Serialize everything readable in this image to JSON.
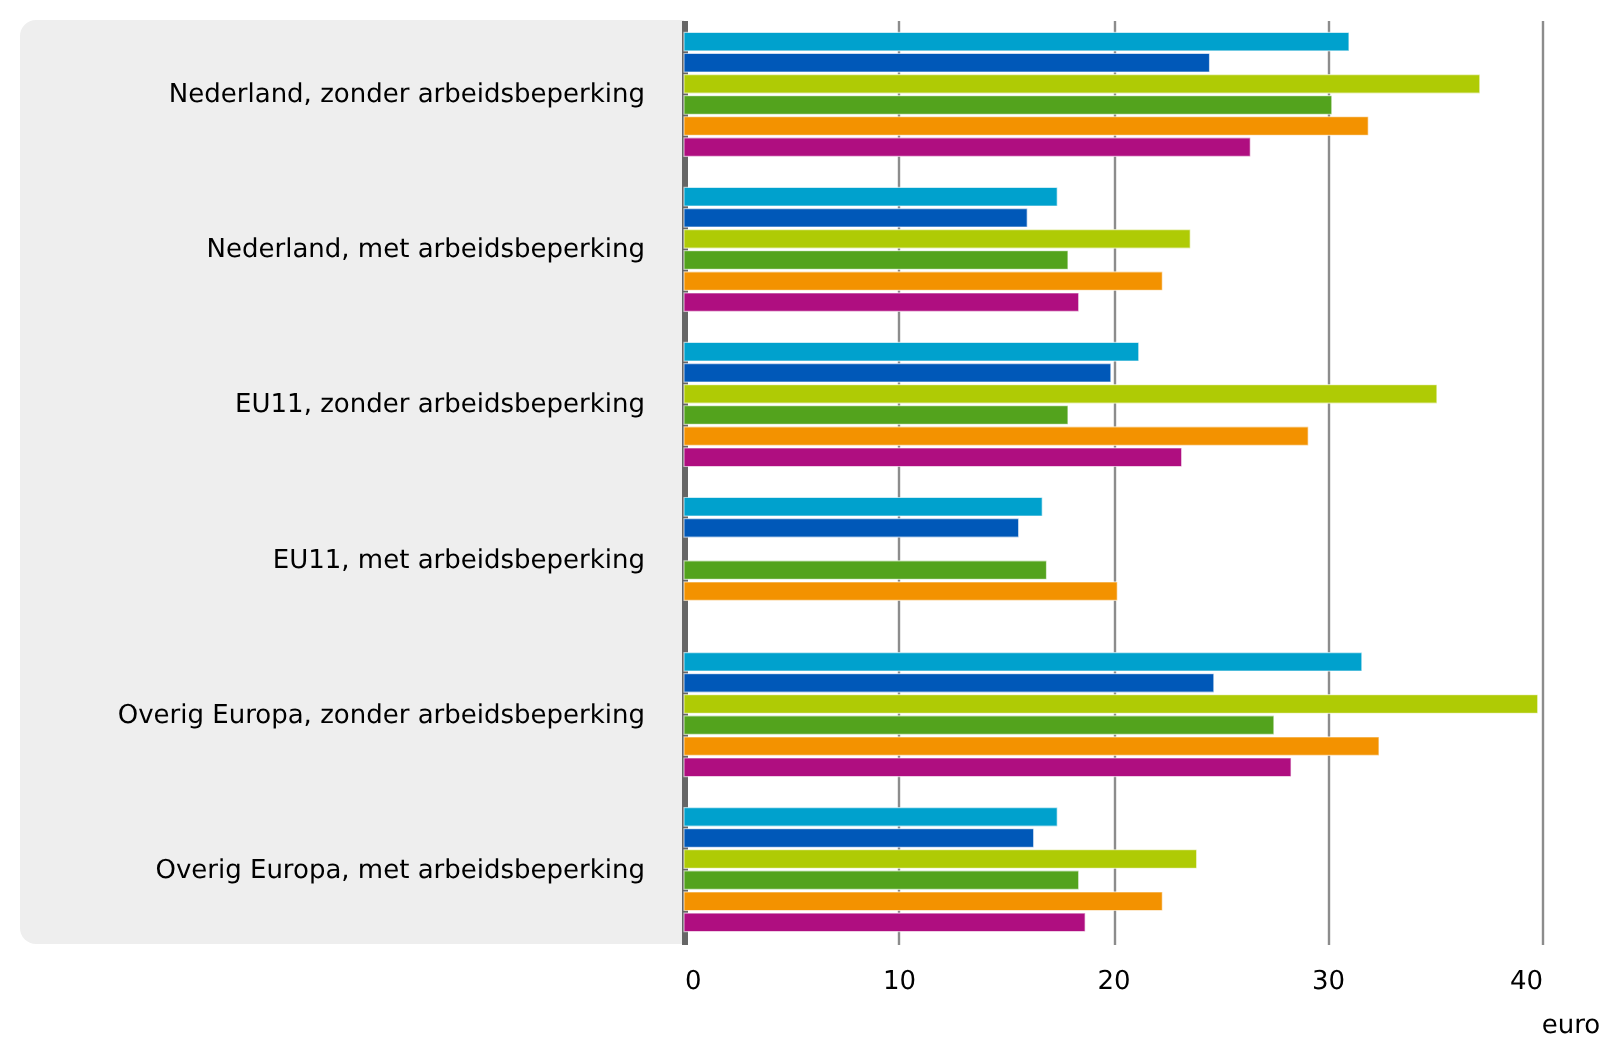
{
  "chart_data": {
    "type": "bar",
    "orientation": "horizontal",
    "xlabel": "euro",
    "categories": [
      "Nederland, zonder arbeidsbeperking",
      "Nederland, met arbeidsbeperking",
      "EU11, zonder arbeidsbeperking",
      "EU11, met arbeidsbeperking",
      "Overig Europa, zonder arbeidsbeperking",
      "Overig Europa, met arbeidsbeperking"
    ],
    "series": [
      {
        "color": "#00a1cd",
        "values": [
          31.0,
          17.4,
          21.2,
          16.7,
          31.6,
          17.4
        ]
      },
      {
        "color": "#0058b8",
        "values": [
          24.5,
          16.0,
          19.9,
          15.6,
          24.7,
          16.3
        ]
      },
      {
        "color": "#afcb05",
        "values": [
          37.1,
          23.6,
          35.1,
          null,
          39.8,
          23.9
        ]
      },
      {
        "color": "#53a31d",
        "values": [
          30.2,
          17.9,
          17.9,
          16.9,
          27.5,
          18.4
        ]
      },
      {
        "color": "#f39200",
        "values": [
          31.9,
          22.3,
          29.1,
          20.2,
          32.4,
          22.3
        ]
      },
      {
        "color": "#af0e80",
        "values": [
          26.4,
          18.4,
          23.2,
          null,
          28.3,
          18.7
        ]
      }
    ],
    "xlim": [
      0,
      40
    ],
    "xticks": [
      0,
      10,
      20,
      30,
      40
    ],
    "grid": "x"
  }
}
